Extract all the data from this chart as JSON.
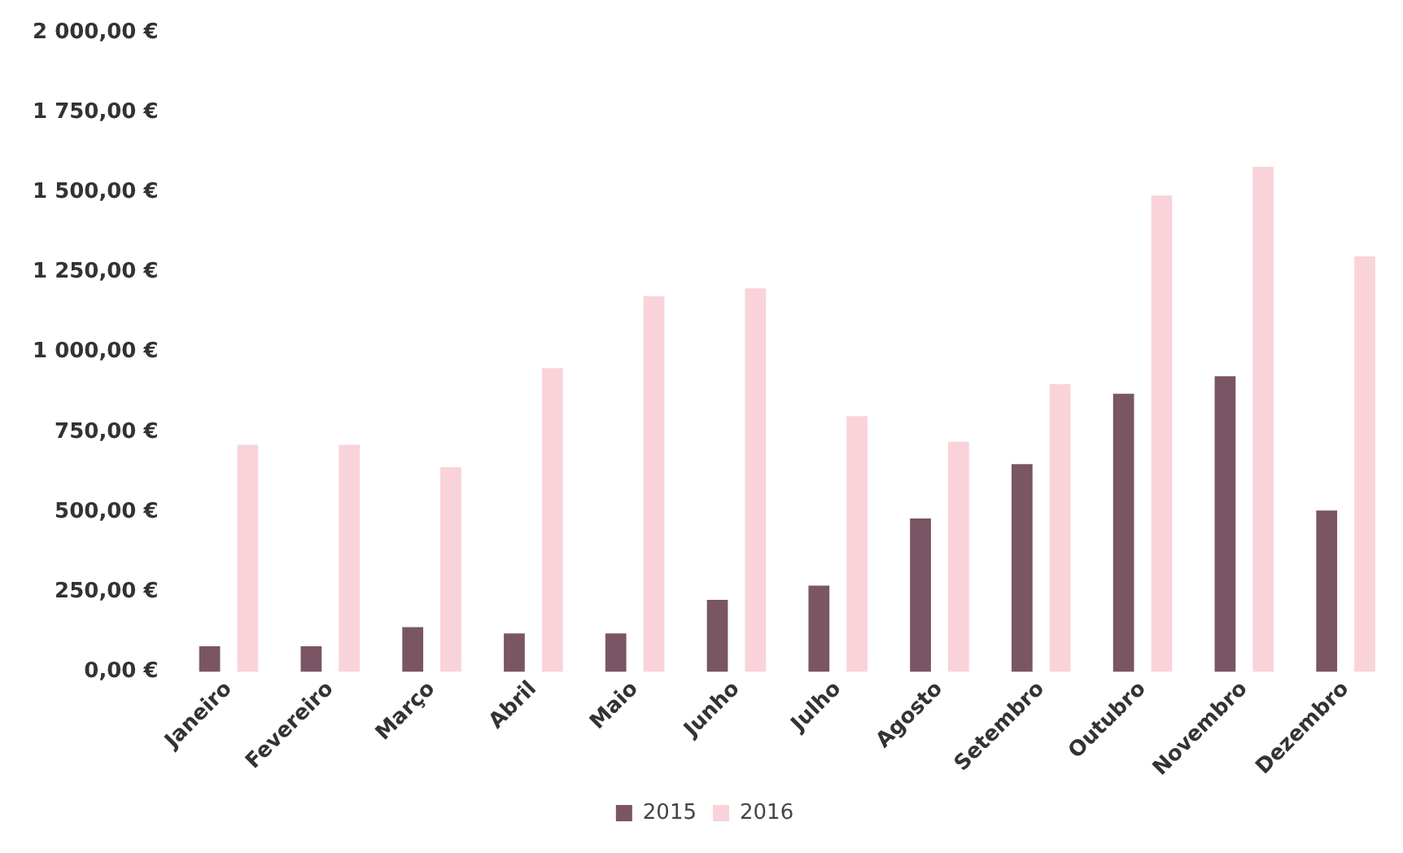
{
  "chart_data": {
    "type": "bar",
    "categories": [
      "Janeiro",
      "Fevereiro",
      "Março",
      "Abril",
      "Maio",
      "Junho",
      "Julho",
      "Agosto",
      "Setembro",
      "Outubro",
      "Novembro",
      "Dezembro"
    ],
    "series": [
      {
        "name": "2015",
        "color": "#7a5563",
        "values": [
          80,
          80,
          140,
          120,
          120,
          225,
          270,
          480,
          650,
          870,
          925,
          505
        ]
      },
      {
        "name": "2016",
        "color": "#f9d3d9",
        "values": [
          710,
          710,
          640,
          950,
          1175,
          1200,
          800,
          720,
          900,
          1490,
          1580,
          1300
        ]
      }
    ],
    "ylim": [
      0,
      2000
    ],
    "yticks": [
      {
        "value": 0,
        "label": "0,00 €"
      },
      {
        "value": 250,
        "label": "250,00 €"
      },
      {
        "value": 500,
        "label": "500,00 €"
      },
      {
        "value": 750,
        "label": "750,00 €"
      },
      {
        "value": 1000,
        "label": "1 000,00 €"
      },
      {
        "value": 1250,
        "label": "1 250,00 €"
      },
      {
        "value": 1500,
        "label": "1 500,00 €"
      },
      {
        "value": 1750,
        "label": "1 750,00 €"
      },
      {
        "value": 2000,
        "label": "2 000,00 €"
      }
    ],
    "grid": false,
    "legend": "bottom"
  }
}
